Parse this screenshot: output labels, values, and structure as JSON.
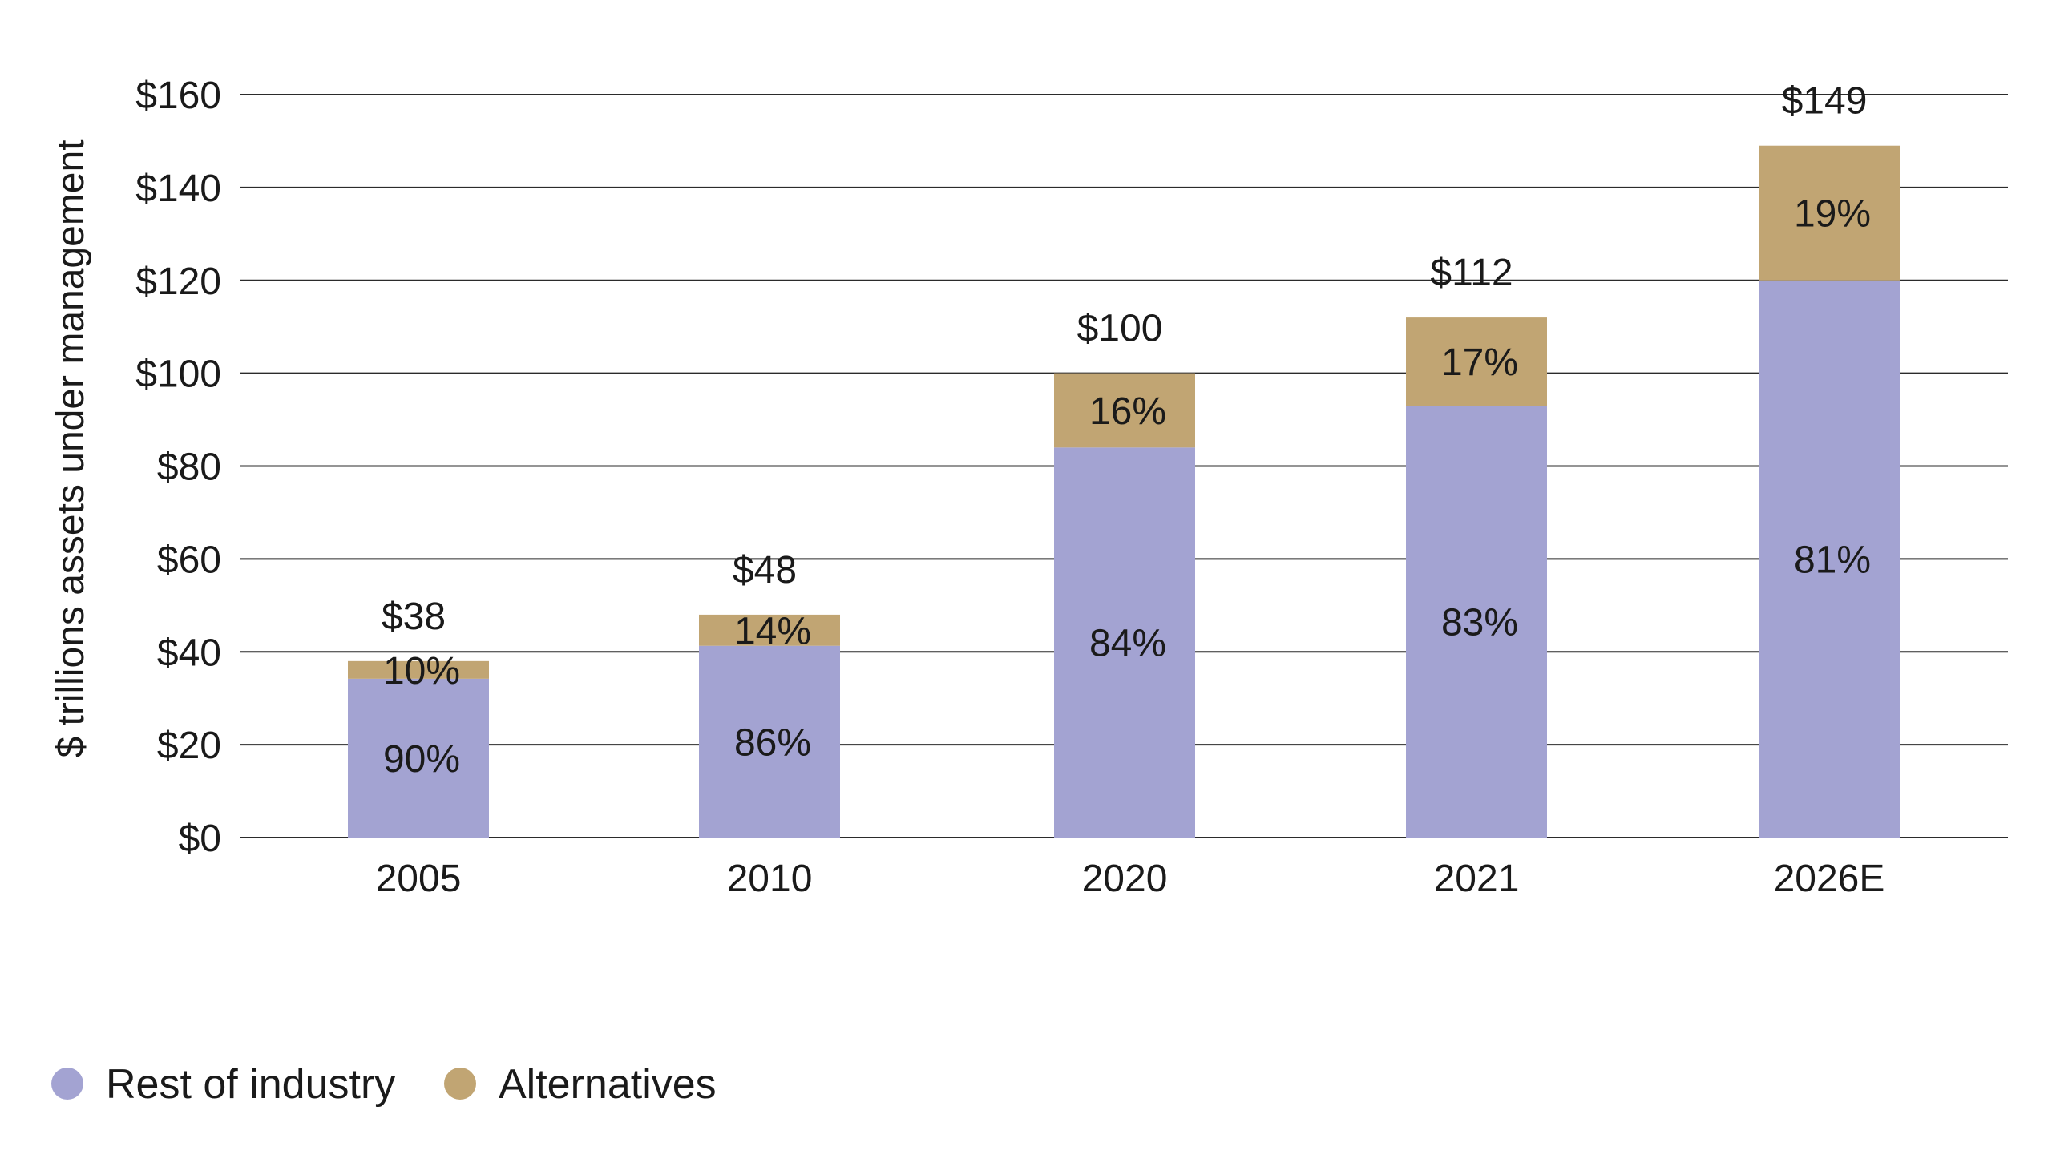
{
  "chart_data": {
    "type": "bar",
    "stacked": true,
    "title": "",
    "xlabel": "",
    "ylabel": "$ trillions assets under management",
    "ylim": [
      0,
      160
    ],
    "yticks": [
      0,
      20,
      40,
      60,
      80,
      100,
      120,
      140,
      160
    ],
    "ytick_labels": [
      "$0",
      "$20",
      "$40",
      "$60",
      "$80",
      "$100",
      "$120",
      "$140",
      "$160"
    ],
    "grid": true,
    "legend_position": "bottom-left",
    "categories": [
      "2005",
      "2010",
      "2020",
      "2021",
      "2026E"
    ],
    "totals": [
      38,
      48,
      100,
      112,
      149
    ],
    "total_labels": [
      "$38",
      "$48",
      "$100",
      "$112",
      "$149"
    ],
    "series": [
      {
        "name": "Rest of industry",
        "color": "#a3a3d2",
        "values": [
          34.2,
          41.3,
          84,
          93,
          120
        ],
        "labels": [
          "90%",
          "86%",
          "84%",
          "83%",
          "81%"
        ]
      },
      {
        "name": "Alternatives",
        "color": "#c1a573",
        "values": [
          3.8,
          6.7,
          16,
          19,
          29
        ],
        "labels": [
          "10%",
          "14%",
          "16%",
          "17%",
          "19%"
        ]
      }
    ]
  }
}
